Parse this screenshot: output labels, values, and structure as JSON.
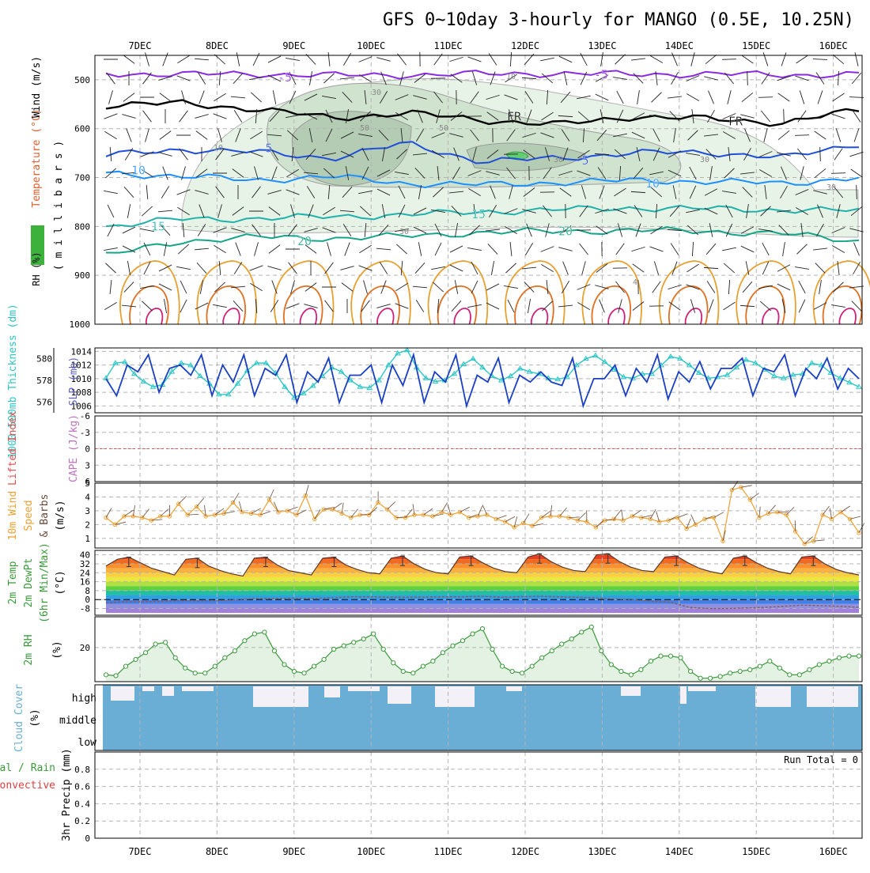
{
  "header": {
    "title": "GFS 0~10day 3-hourly for MANGO (0.5E, 10.25N)"
  },
  "days": [
    "7DEC",
    "8DEC",
    "9DEC",
    "10DEC",
    "11DEC",
    "12DEC",
    "13DEC",
    "14DEC",
    "15DEC",
    "16DEC"
  ],
  "colors": {
    "grid": "#b4b4b4",
    "rh_fill": "#7fb87f",
    "t_minus5": "#8a2be2",
    "t_fr": "#000000",
    "t_5": "#1f4fd8",
    "t_10": "#1e90ff",
    "t_15": "#20b2aa",
    "t_20": "#17a589",
    "thickness": "#2cc6c6",
    "slp": "#1a3fc4",
    "wind": "#f0a030",
    "lifted": "#e05050",
    "temp_line": "#5a3a2a",
    "dew_line": "#8b5a5a",
    "rh2m": "#3a9a3a",
    "cloud": "#6aaed6"
  },
  "chart_data": [
    {
      "type": "contour",
      "panel": "upper-air",
      "ylabel_rh": "RH (%)",
      "ylabel_temp": "Temperature (°C)",
      "ylabel_wind": "Wind (m/s)",
      "ylabel_units": "( m i l l i b a r s )",
      "yticks": [
        500,
        600,
        700,
        800,
        900,
        1000
      ],
      "ylim": [
        450,
        1000
      ],
      "isotherm_labels": [
        {
          "label": "-5",
          "level": 495
        },
        {
          "label": "-5",
          "level": 490
        },
        {
          "label": "FR",
          "level": 575
        },
        {
          "label": "FR",
          "level": 585
        },
        {
          "label": "5",
          "level": 640
        },
        {
          "label": "5",
          "level": 665
        },
        {
          "label": "10",
          "level": 685
        },
        {
          "label": "10",
          "level": 712
        },
        {
          "label": "15",
          "level": 800
        },
        {
          "label": "15",
          "level": 775
        },
        {
          "label": "20",
          "level": 830
        },
        {
          "label": "20",
          "level": 810
        }
      ],
      "isotherms": [
        {
          "name": "-5",
          "levels": [
            487,
            489,
            488,
            491,
            490,
            488,
            487,
            489,
            488,
            490,
            489
          ]
        },
        {
          "name": "FR",
          "levels": [
            552,
            548,
            560,
            578,
            568,
            582,
            592,
            575,
            580,
            588,
            562
          ]
        },
        {
          "name": "5",
          "levels": [
            655,
            642,
            648,
            660,
            630,
            668,
            660,
            650,
            648,
            660,
            630
          ]
        },
        {
          "name": "10",
          "levels": [
            690,
            698,
            705,
            698,
            712,
            715,
            710,
            706,
            708,
            712,
            700
          ]
        },
        {
          "name": "15",
          "levels": [
            800,
            785,
            784,
            780,
            776,
            770,
            766,
            762,
            764,
            766,
            768
          ]
        },
        {
          "name": "20",
          "levels": [
            860,
            830,
            822,
            824,
            820,
            812,
            810,
            808,
            810,
            815,
            830
          ]
        }
      ],
      "rh_contour_labels": [
        "10",
        "30",
        "50",
        "50",
        "30",
        "30",
        "10",
        "30",
        "30",
        "4"
      ]
    },
    {
      "type": "line",
      "panel": "thickness-slp",
      "ylabel_left": "1000-500mb Thickness (dm)",
      "ylabel_right": "SLP (mb)",
      "thickness_ticks": [
        576,
        578,
        580
      ],
      "thickness_ylim": [
        575,
        581
      ],
      "slp_ticks": [
        1006,
        1008,
        1010,
        1012,
        1014
      ],
      "slp_ylim": [
        1005,
        1014.5
      ],
      "series": [
        {
          "name": "thickness (dm)",
          "values": [
            578.2,
            579.6,
            579.7,
            578.6,
            577.9,
            577.4,
            577.6,
            578.8,
            579.6,
            579.4,
            578.4,
            577.7,
            576.7,
            576.7,
            577.7,
            578.9,
            579.6,
            579.6,
            578.7,
            577.4,
            576.4,
            576.8,
            577.5,
            578.4,
            579.2,
            578.8,
            578,
            577.4,
            577.3,
            578,
            579.4,
            580.5,
            580.8,
            579.2,
            578.2,
            577.9,
            578,
            578.6,
            579.5,
            580,
            579.2,
            578.4,
            578,
            578.4,
            579.1,
            578.8,
            578.6,
            578.2,
            578.1,
            578.3,
            579.4,
            580,
            580.3,
            579.7,
            579,
            578.3,
            578.2,
            578.6,
            578.6,
            579.4,
            580.2,
            580,
            579.4,
            578.7,
            578.2,
            578.3,
            578.5,
            579.2,
            579.9,
            579.6,
            579,
            578.4,
            578.2,
            578.5,
            578.6,
            579.6,
            579.4,
            578.7,
            578.2,
            577.8,
            577.4
          ]
        },
        {
          "name": "SLP (mb)",
          "values": [
            1010,
            1007.5,
            1012,
            1011,
            1013.5,
            1008,
            1011.5,
            1012,
            1010.5,
            1013.5,
            1007.5,
            1012,
            1009.5,
            1013.5,
            1007.5,
            1011.5,
            1010.5,
            1013.5,
            1006.5,
            1011,
            1009.5,
            1013,
            1006.5,
            1010.5,
            1010.5,
            1012,
            1006.5,
            1012,
            1009,
            1013.5,
            1006.5,
            1011,
            1009.5,
            1013.5,
            1006,
            1010.5,
            1009.5,
            1013,
            1006.5,
            1010.5,
            1009.5,
            1011,
            1009.5,
            1009,
            1013,
            1006,
            1010,
            1010,
            1012,
            1007.5,
            1011.5,
            1009.5,
            1013.5,
            1007,
            1011,
            1009.5,
            1012.5,
            1008.5,
            1011.5,
            1011.5,
            1013,
            1007.5,
            1011.5,
            1011,
            1013.5,
            1007.5,
            1011.5,
            1010,
            1013,
            1008.5,
            1011.5,
            1010
          ]
        }
      ]
    },
    {
      "type": "line",
      "panel": "stability",
      "ylabel_left": "Lifted Index",
      "ylabel_right": "CAPE (J/kg)",
      "yticks": [
        6,
        3,
        0,
        -3,
        -6
      ],
      "ytick_labels": [
        "-6",
        "-3",
        "0",
        "3",
        "6"
      ],
      "lifted_index_zero_line": 0
    },
    {
      "type": "line",
      "panel": "wind10m",
      "ylabel_left": "10m Wind",
      "ylabel_mid": "Speed",
      "ylabel_right": "& Barbs",
      "ylabel_units": "(m/s)",
      "yticks": [
        1,
        2,
        3,
        4,
        5
      ],
      "ylim": [
        0.3,
        5
      ],
      "series": [
        {
          "name": "speed (m/s)",
          "values": [
            2.5,
            2,
            2.6,
            2.6,
            2.5,
            2.3,
            2.6,
            2.6,
            3.5,
            2.7,
            3.3,
            2.6,
            2.7,
            2.8,
            3.6,
            2.9,
            2.8,
            2.7,
            3.8,
            2.9,
            3,
            2.7,
            4.1,
            2.4,
            3.1,
            3.1,
            2.8,
            2.5,
            2.7,
            2.7,
            3.6,
            3.1,
            2.5,
            2.5,
            2.7,
            2.7,
            2.6,
            2.9,
            2.7,
            2.9,
            2.5,
            2.6,
            2.7,
            2.4,
            2.2,
            1.8,
            2.1,
            1.9,
            2.5,
            2.6,
            2.6,
            2.5,
            2.3,
            2.2,
            1.8,
            2.3,
            2.4,
            2.3,
            2.6,
            2.5,
            2.4,
            2.2,
            2.3,
            2.5,
            1.7,
            2,
            2.4,
            2.5,
            0.8,
            4.5,
            4.7,
            3.8,
            2.5,
            2.8,
            2.9,
            2.7,
            1.5,
            0.6,
            0.8,
            2.7,
            2.4,
            2.9,
            2.4,
            1.4
          ]
        }
      ]
    },
    {
      "type": "area",
      "panel": "temp2m",
      "ylabel_left": "2m Temp",
      "ylabel_mid": "2m DewPt",
      "ylabel_right": "(6hr Min/Max)",
      "ylabel_units": "(°C)",
      "yticks": [
        -8,
        0,
        8,
        16,
        24,
        32,
        40
      ],
      "ylim": [
        -14,
        44
      ],
      "series": [
        {
          "name": "2m temp (°C)",
          "values": [
            30,
            36,
            38,
            33,
            28,
            25,
            22,
            36,
            37,
            30,
            26,
            23,
            21,
            37,
            38,
            31,
            26,
            24,
            22,
            37,
            38,
            31,
            27,
            24,
            23,
            37,
            39,
            32,
            27,
            24,
            23,
            38,
            39,
            33,
            28,
            25,
            24,
            38,
            41,
            34,
            29,
            26,
            25,
            40,
            41,
            34,
            29,
            26,
            25,
            38,
            39,
            33,
            28,
            25,
            23,
            37,
            39,
            33,
            28,
            25,
            23,
            38,
            39,
            32,
            27,
            24,
            22
          ]
        },
        {
          "name": "2m dewpt (°C)",
          "values": [
            -3,
            -2,
            -2,
            -1.5,
            -1,
            -1.2,
            -1,
            0,
            1,
            1,
            1.2,
            1,
            1.5,
            2.5,
            2.5,
            2,
            2,
            2.2,
            2.5,
            2.5,
            3,
            2,
            2.6,
            3,
            2.5,
            2,
            1.5,
            0.5,
            0,
            -1.5,
            -2.5,
            -7,
            -8,
            -8,
            -7.5,
            -7,
            -6,
            -5,
            -5.5,
            -6,
            -7
          ]
        }
      ]
    },
    {
      "type": "area",
      "panel": "rh2m",
      "ylabel_left": "2m RH",
      "ylabel_units": "(%)",
      "yticks": [
        20
      ],
      "ylim": [
        0,
        38
      ],
      "series": [
        {
          "name": "2m RH (%)",
          "values": [
            4,
            3.5,
            9,
            13,
            17,
            22,
            23,
            14,
            8,
            5,
            5,
            9,
            14,
            18,
            24,
            28,
            29,
            18,
            10,
            6,
            5,
            9,
            13,
            19,
            21,
            23,
            25,
            28,
            19,
            11,
            6,
            5,
            9,
            12,
            17,
            21,
            24,
            28,
            31,
            19,
            9,
            6,
            5,
            9,
            14,
            18,
            22,
            25,
            29,
            32,
            18,
            10,
            6,
            4,
            7,
            12,
            15,
            15,
            14,
            6,
            2,
            2,
            3,
            5,
            6,
            7,
            9,
            12,
            8,
            4,
            4,
            7,
            10,
            12,
            14,
            15,
            15
          ]
        }
      ]
    },
    {
      "type": "heatmap",
      "panel": "cloud",
      "ylabel": "Cloud Cover",
      "ylabel_units": "(%)",
      "levels": [
        "high",
        "middle",
        "low"
      ]
    },
    {
      "type": "bar",
      "panel": "precip",
      "ylabel_left": "Total / Rain",
      "ylabel_right": "Convective",
      "ylabel": "3hr Precip (mm)",
      "yticks": [
        0,
        0.2,
        0.4,
        0.6,
        0.8
      ],
      "ylim": [
        0,
        1
      ],
      "run_total_label": "Run Total = 0",
      "values": []
    }
  ]
}
